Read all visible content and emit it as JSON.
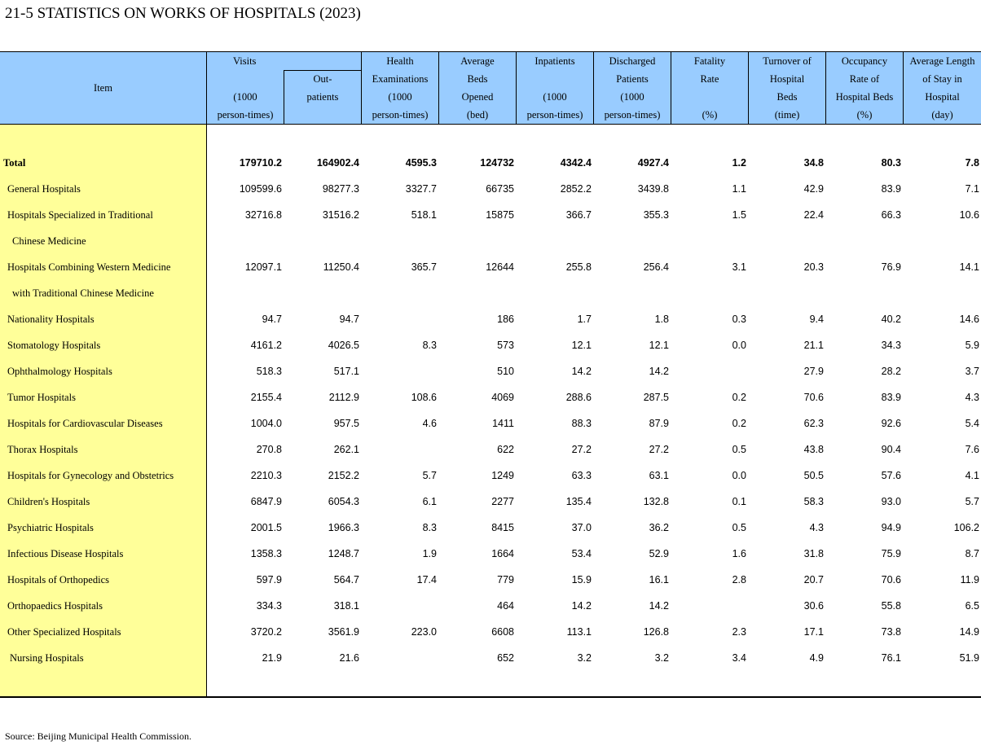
{
  "title": "21-5  STATISTICS ON WORKS OF HOSPITALS (2023)",
  "header": {
    "item": "Item",
    "visits_top": "Visits",
    "visits_sub_left": [
      "",
      "",
      "(1000",
      "person-times)"
    ],
    "visits_sub_right": [
      "Out-",
      "patients",
      ""
    ],
    "columns": [
      [
        "Health",
        "Examinations",
        "(1000",
        "person-times)"
      ],
      [
        "Average",
        "Beds",
        "Opened",
        "(bed)"
      ],
      [
        "Inpatients",
        "",
        "(1000",
        "person-times)"
      ],
      [
        "Discharged",
        "Patients",
        "(1000",
        "person-times)"
      ],
      [
        "Fatality",
        "Rate",
        "",
        "(%)"
      ],
      [
        "Turnover of",
        "Hospital",
        "Beds",
        "(time)"
      ],
      [
        "Occupancy",
        "Rate of",
        "Hospital Beds",
        "(%)"
      ],
      [
        "Average Length",
        "of Stay in",
        "Hospital",
        "(day)"
      ]
    ]
  },
  "rows": [
    {
      "label": "Total",
      "total": true,
      "values": [
        "179710.2",
        "164902.4",
        "4595.3",
        "124732",
        "4342.4",
        "4927.4",
        "1.2",
        "34.8",
        "80.3",
        "7.8"
      ]
    },
    {
      "label": "General Hospitals",
      "values": [
        "109599.6",
        "98277.3",
        "3327.7",
        "66735",
        "2852.2",
        "3439.8",
        "1.1",
        "42.9",
        "83.9",
        "7.1"
      ]
    },
    {
      "label": "Hospitals Specialized in Traditional",
      "values": [
        "32716.8",
        "31516.2",
        "518.1",
        "15875",
        "366.7",
        "355.3",
        "1.5",
        "22.4",
        "66.3",
        "10.6"
      ]
    },
    {
      "label": "Chinese Medicine",
      "indent": true,
      "values": [
        "",
        "",
        "",
        "",
        "",
        "",
        "",
        "",
        "",
        ""
      ]
    },
    {
      "label": "Hospitals Combining Western Medicine",
      "values": [
        "12097.1",
        "11250.4",
        "365.7",
        "12644",
        "255.8",
        "256.4",
        "3.1",
        "20.3",
        "76.9",
        "14.1"
      ]
    },
    {
      "label": "with Traditional Chinese Medicine",
      "indent": true,
      "values": [
        "",
        "",
        "",
        "",
        "",
        "",
        "",
        "",
        "",
        ""
      ]
    },
    {
      "label": "Nationality Hospitals",
      "values": [
        "94.7",
        "94.7",
        "",
        "186",
        "1.7",
        "1.8",
        "0.3",
        "9.4",
        "40.2",
        "14.6"
      ]
    },
    {
      "label": "Stomatology Hospitals",
      "values": [
        "4161.2",
        "4026.5",
        "8.3",
        "573",
        "12.1",
        "12.1",
        "0.0",
        "21.1",
        "34.3",
        "5.9"
      ]
    },
    {
      "label": "Ophthalmology Hospitals",
      "values": [
        "518.3",
        "517.1",
        "",
        "510",
        "14.2",
        "14.2",
        "",
        "27.9",
        "28.2",
        "3.7"
      ]
    },
    {
      "label": "Tumor Hospitals",
      "values": [
        "2155.4",
        "2112.9",
        "108.6",
        "4069",
        "288.6",
        "287.5",
        "0.2",
        "70.6",
        "83.9",
        "4.3"
      ]
    },
    {
      "label": "Hospitals for Cardiovascular Diseases",
      "values": [
        "1004.0",
        "957.5",
        "4.6",
        "1411",
        "88.3",
        "87.9",
        "0.2",
        "62.3",
        "92.6",
        "5.4"
      ]
    },
    {
      "label": "Thorax Hospitals",
      "values": [
        "270.8",
        "262.1",
        "",
        "622",
        "27.2",
        "27.2",
        "0.5",
        "43.8",
        "90.4",
        "7.6"
      ]
    },
    {
      "label": "Hospitals for Gynecology and Obstetrics",
      "values": [
        "2210.3",
        "2152.2",
        "5.7",
        "1249",
        "63.3",
        "63.1",
        "0.0",
        "50.5",
        "57.6",
        "4.1"
      ]
    },
    {
      "label": "Children's Hospitals",
      "values": [
        "6847.9",
        "6054.3",
        "6.1",
        "2277",
        "135.4",
        "132.8",
        "0.1",
        "58.3",
        "93.0",
        "5.7"
      ]
    },
    {
      "label": "Psychiatric Hospitals",
      "values": [
        "2001.5",
        "1966.3",
        "8.3",
        "8415",
        "37.0",
        "36.2",
        "0.5",
        "4.3",
        "94.9",
        "106.2"
      ]
    },
    {
      "label": "Infectious Disease Hospitals",
      "values": [
        "1358.3",
        "1248.7",
        "1.9",
        "1664",
        "53.4",
        "52.9",
        "1.6",
        "31.8",
        "75.9",
        "8.7"
      ]
    },
    {
      "label": "Hospitals of Orthopedics",
      "values": [
        "597.9",
        "564.7",
        "17.4",
        "779",
        "15.9",
        "16.1",
        "2.8",
        "20.7",
        "70.6",
        "11.9"
      ]
    },
    {
      "label": "Orthopaedics Hospitals",
      "values": [
        "334.3",
        "318.1",
        "",
        "464",
        "14.2",
        "14.2",
        "",
        "30.6",
        "55.8",
        "6.5"
      ]
    },
    {
      "label": "Other Specialized Hospitals",
      "values": [
        "3720.2",
        "3561.9",
        "223.0",
        "6608",
        "113.1",
        "126.8",
        "2.3",
        "17.1",
        "73.8",
        "14.9"
      ]
    },
    {
      "label": "Nursing Hospitals",
      "nursing": true,
      "values": [
        "21.9",
        "21.6",
        "",
        "652",
        "3.2",
        "3.2",
        "3.4",
        "4.9",
        "76.1",
        "51.9"
      ]
    }
  ],
  "source": "Source: Beijing Municipal Health Commission."
}
